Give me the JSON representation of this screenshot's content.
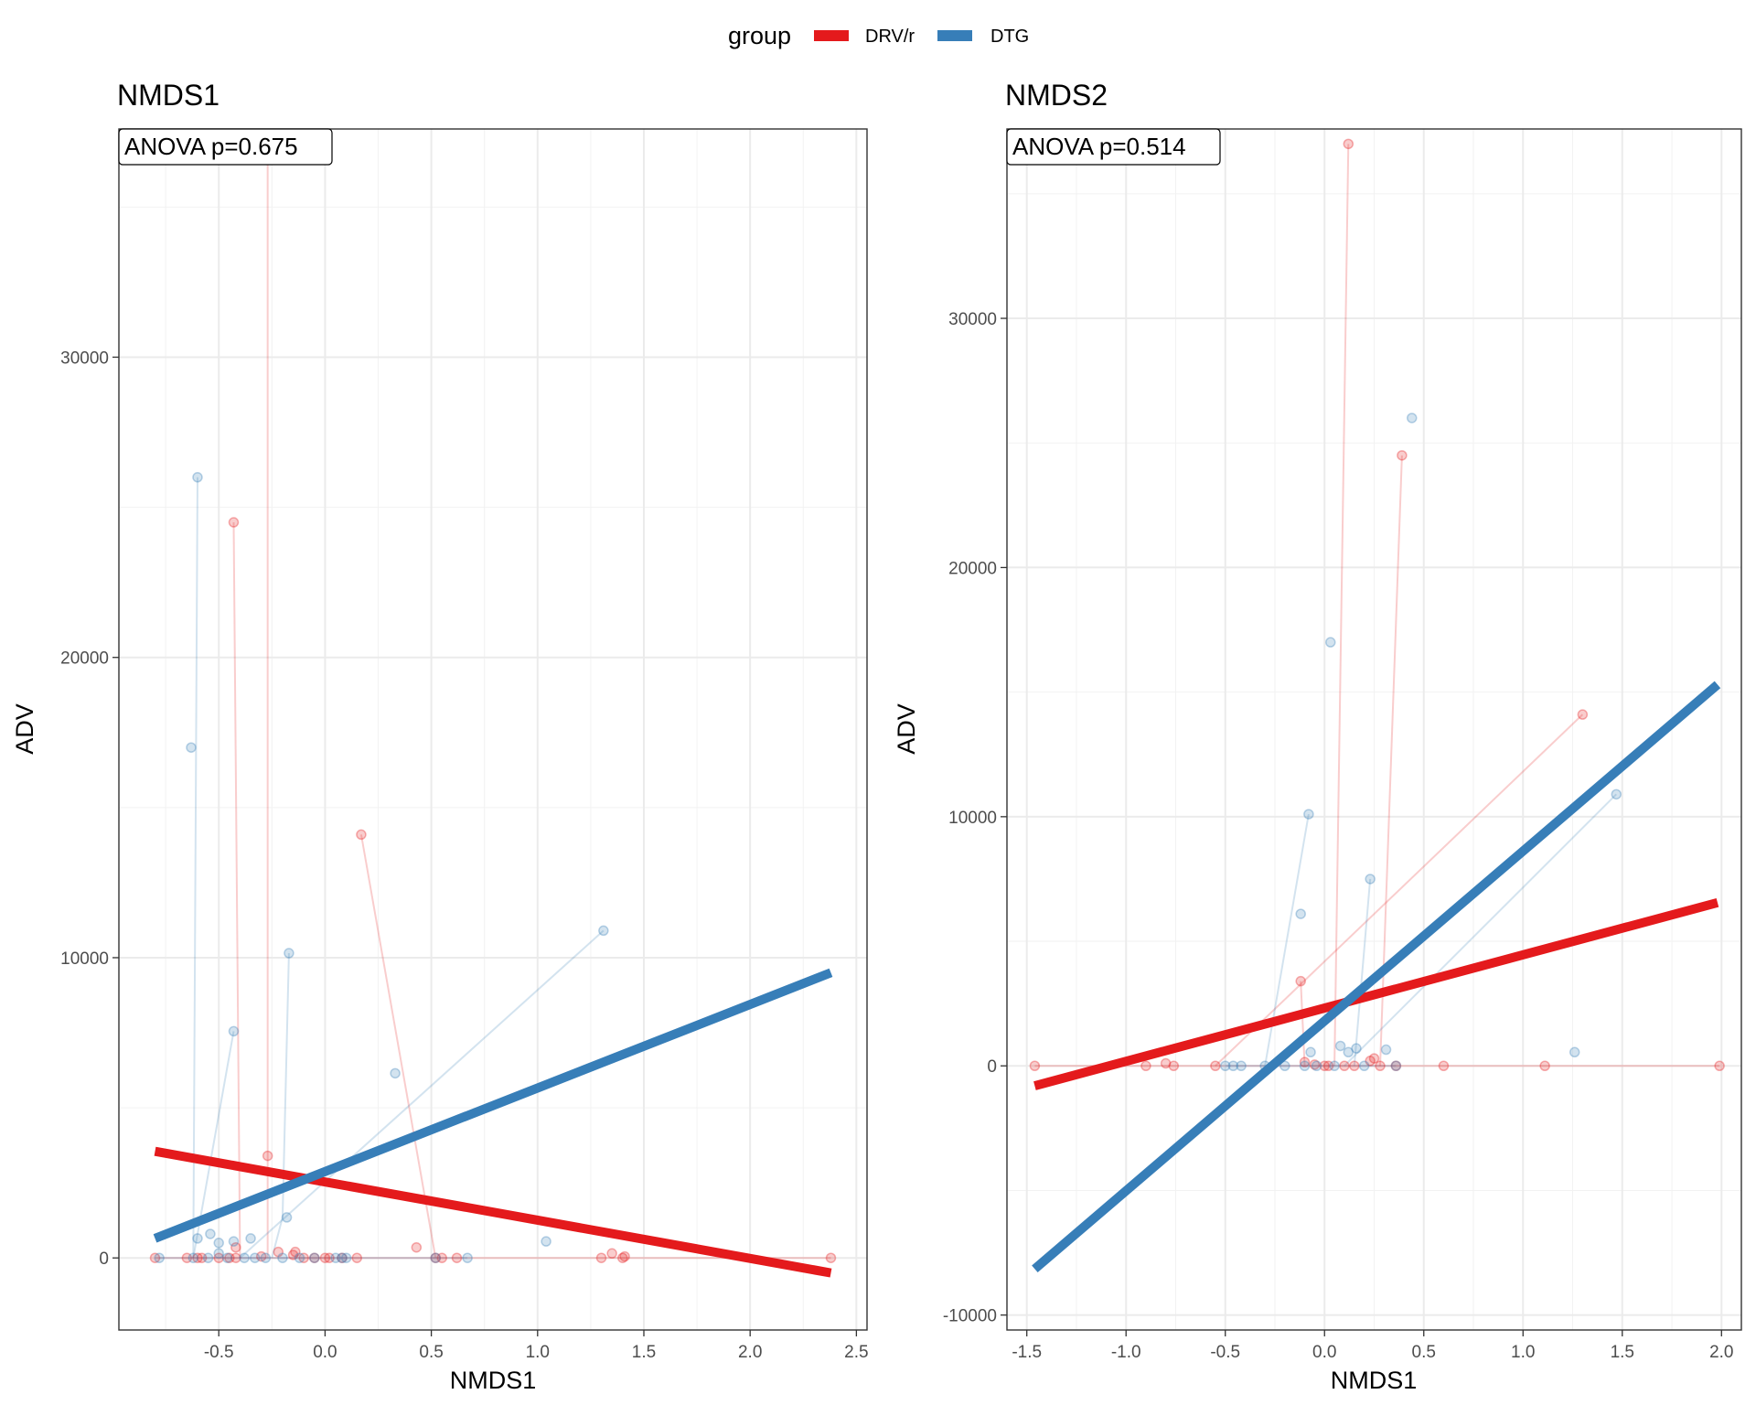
{
  "legend": {
    "title": "group",
    "entries": [
      {
        "label": "DRV/r",
        "color": "#e41a1c"
      },
      {
        "label": "DTG",
        "color": "#377eb8"
      }
    ]
  },
  "chart_data": [
    {
      "type": "scatter",
      "title": "NMDS1",
      "annotation": "ANOVA p=0.675",
      "xlabel": "NMDS1",
      "ylabel": "ADV",
      "xlim": [
        -0.97,
        2.55
      ],
      "ylim": [
        -2400,
        37600
      ],
      "xticks": [
        -0.5,
        0.0,
        0.5,
        1.0,
        1.5,
        2.0,
        2.5
      ],
      "xtick_labels": [
        "-0.5",
        "0.0",
        "0.5",
        "1.0",
        "1.5",
        "2.0",
        "2.5"
      ],
      "yticks": [
        0,
        10000,
        20000,
        30000
      ],
      "ytick_labels": [
        "0",
        "10000",
        "20000",
        "30000"
      ],
      "grid": true,
      "series": [
        {
          "name": "DRV/r",
          "color": "#e41a1c",
          "points": [
            [
              -0.27,
              37000
            ],
            [
              -0.27,
              3400
            ],
            [
              -0.43,
              24500
            ],
            [
              -0.42,
              350
            ],
            [
              0.17,
              14100
            ],
            [
              0.52,
              0
            ],
            [
              0.43,
              350
            ],
            [
              -0.8,
              0
            ],
            [
              -0.65,
              0
            ],
            [
              -0.6,
              0
            ],
            [
              -0.58,
              0
            ],
            [
              -0.5,
              0
            ],
            [
              -0.45,
              0
            ],
            [
              -0.42,
              0
            ],
            [
              -0.3,
              50
            ],
            [
              -0.22,
              200
            ],
            [
              -0.15,
              100
            ],
            [
              -0.14,
              200
            ],
            [
              -0.1,
              0
            ],
            [
              -0.05,
              0
            ],
            [
              0.0,
              0
            ],
            [
              0.02,
              0
            ],
            [
              0.08,
              0
            ],
            [
              0.15,
              0
            ],
            [
              0.55,
              0
            ],
            [
              0.62,
              0
            ],
            [
              1.3,
              0
            ],
            [
              1.35,
              150
            ],
            [
              1.4,
              0
            ],
            [
              1.41,
              50
            ],
            [
              2.38,
              0
            ]
          ],
          "paths": [
            [
              [
                -0.27,
                37000
              ],
              [
                -0.27,
                3400
              ],
              [
                -0.27,
                0
              ]
            ],
            [
              [
                -0.43,
                24500
              ],
              [
                -0.4,
                0
              ]
            ],
            [
              [
                0.17,
                14100
              ],
              [
                0.52,
                0
              ]
            ],
            [
              [
                -0.8,
                0
              ],
              [
                2.38,
                0
              ]
            ]
          ],
          "fit": [
            [
              -0.8,
              3550
            ],
            [
              2.38,
              -500
            ]
          ]
        },
        {
          "name": "DTG",
          "color": "#377eb8",
          "points": [
            [
              -0.6,
              26000
            ],
            [
              -0.63,
              17000
            ],
            [
              -0.17,
              10150
            ],
            [
              -0.43,
              7550
            ],
            [
              0.33,
              6150
            ],
            [
              1.31,
              10900
            ],
            [
              1.04,
              550
            ],
            [
              -0.18,
              1350
            ],
            [
              -0.54,
              800
            ],
            [
              -0.6,
              650
            ],
            [
              -0.5,
              500
            ],
            [
              -0.43,
              550
            ],
            [
              -0.35,
              650
            ],
            [
              -0.78,
              0
            ],
            [
              -0.62,
              0
            ],
            [
              -0.55,
              0
            ],
            [
              -0.5,
              150
            ],
            [
              -0.46,
              0
            ],
            [
              -0.38,
              0
            ],
            [
              -0.33,
              0
            ],
            [
              -0.28,
              0
            ],
            [
              -0.2,
              0
            ],
            [
              -0.12,
              0
            ],
            [
              -0.05,
              0
            ],
            [
              0.05,
              0
            ],
            [
              0.08,
              0
            ],
            [
              0.1,
              0
            ],
            [
              0.52,
              0
            ],
            [
              0.67,
              0
            ]
          ],
          "paths": [
            [
              [
                -0.6,
                26000
              ],
              [
                -0.62,
                0
              ]
            ],
            [
              [
                -0.17,
                10150
              ],
              [
                -0.2,
                1350
              ],
              [
                -0.25,
                0
              ]
            ],
            [
              [
                -0.43,
                7550
              ],
              [
                -0.62,
                0
              ]
            ],
            [
              [
                1.31,
                10900
              ],
              [
                -0.4,
                0
              ]
            ],
            [
              [
                -0.78,
                0
              ],
              [
                0.67,
                0
              ]
            ]
          ],
          "fit": [
            [
              -0.8,
              650
            ],
            [
              2.38,
              9500
            ]
          ]
        }
      ]
    },
    {
      "type": "scatter",
      "title": "NMDS2",
      "annotation": "ANOVA p=0.514",
      "xlabel": "NMDS1",
      "ylabel": "ADV",
      "xlim": [
        -1.6,
        2.1
      ],
      "ylim": [
        -10600,
        37600
      ],
      "xticks": [
        -1.5,
        -1.0,
        -0.5,
        0.0,
        0.5,
        1.0,
        1.5,
        2.0
      ],
      "xtick_labels": [
        "-1.5",
        "-1.0",
        "-0.5",
        "0.0",
        "0.5",
        "1.0",
        "1.5",
        "2.0"
      ],
      "yticks": [
        -10000,
        0,
        10000,
        20000,
        30000
      ],
      "ytick_labels": [
        "-10000",
        "0",
        "10000",
        "20000",
        "30000"
      ],
      "grid": true,
      "series": [
        {
          "name": "DRV/r",
          "color": "#e41a1c",
          "points": [
            [
              0.12,
              37000
            ],
            [
              0.39,
              24500
            ],
            [
              -0.12,
              3400
            ],
            [
              1.3,
              14100
            ],
            [
              -1.46,
              0
            ],
            [
              -0.9,
              0
            ],
            [
              -0.8,
              100
            ],
            [
              -0.76,
              0
            ],
            [
              -0.55,
              0
            ],
            [
              -0.1,
              150
            ],
            [
              -0.05,
              50
            ],
            [
              0.0,
              0
            ],
            [
              0.02,
              0
            ],
            [
              0.1,
              0
            ],
            [
              0.15,
              0
            ],
            [
              0.23,
              200
            ],
            [
              0.25,
              300
            ],
            [
              0.28,
              0
            ],
            [
              0.36,
              0
            ],
            [
              0.6,
              0
            ],
            [
              1.11,
              0
            ],
            [
              1.99,
              0
            ]
          ],
          "paths": [
            [
              [
                0.12,
                37000
              ],
              [
                0.05,
                0
              ]
            ],
            [
              [
                0.39,
                24500
              ],
              [
                0.28,
                0
              ]
            ],
            [
              [
                -0.12,
                3400
              ],
              [
                -0.1,
                0
              ]
            ],
            [
              [
                1.3,
                14100
              ],
              [
                -0.55,
                0
              ]
            ],
            [
              [
                -1.46,
                0
              ],
              [
                1.99,
                0
              ]
            ]
          ],
          "fit": [
            [
              -1.46,
              -800
            ],
            [
              1.98,
              6550
            ]
          ]
        },
        {
          "name": "DTG",
          "color": "#377eb8",
          "points": [
            [
              0.44,
              26000
            ],
            [
              0.03,
              17000
            ],
            [
              -0.08,
              10100
            ],
            [
              -0.12,
              6100
            ],
            [
              0.23,
              7500
            ],
            [
              1.47,
              10900
            ],
            [
              1.26,
              550
            ],
            [
              0.08,
              800
            ],
            [
              0.12,
              550
            ],
            [
              0.16,
              700
            ],
            [
              0.31,
              650
            ],
            [
              -0.07,
              550
            ],
            [
              -0.5,
              0
            ],
            [
              -0.46,
              0
            ],
            [
              -0.42,
              0
            ],
            [
              -0.3,
              0
            ],
            [
              -0.2,
              0
            ],
            [
              -0.1,
              0
            ],
            [
              -0.04,
              0
            ],
            [
              0.05,
              0
            ],
            [
              0.2,
              0
            ],
            [
              0.36,
              0
            ]
          ],
          "paths": [
            [
              [
                -0.08,
                10100
              ],
              [
                -0.3,
                0
              ]
            ],
            [
              [
                0.23,
                7500
              ],
              [
                0.15,
                0
              ]
            ],
            [
              [
                1.47,
                10900
              ],
              [
                0.1,
                0
              ]
            ],
            [
              [
                -0.5,
                0
              ],
              [
                0.36,
                0
              ]
            ]
          ],
          "fit": [
            [
              -1.46,
              -8150
            ],
            [
              1.98,
              15300
            ]
          ]
        }
      ]
    }
  ]
}
